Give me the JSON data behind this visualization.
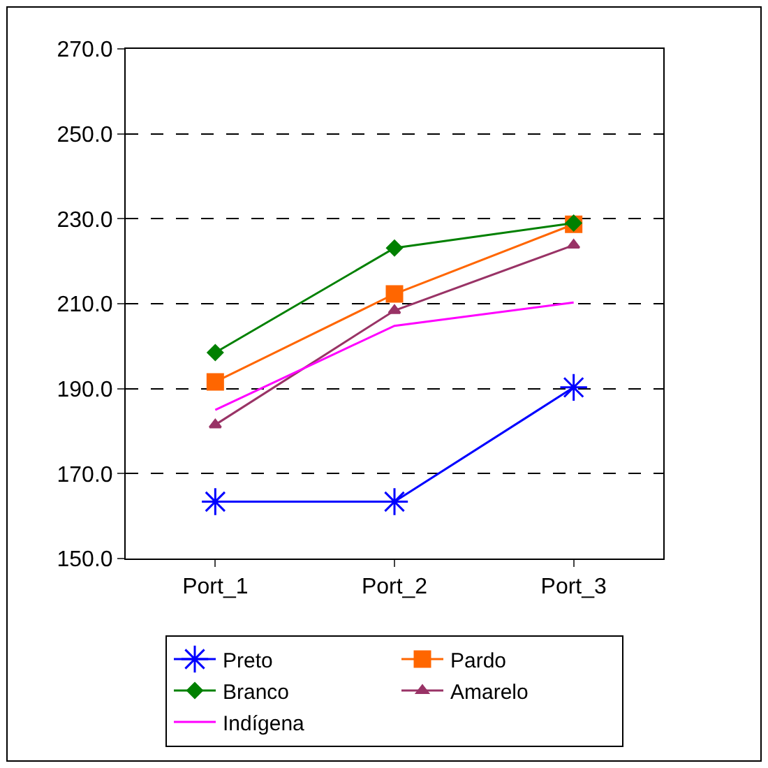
{
  "chart_data": {
    "type": "line",
    "categories": [
      "Port_1",
      "Port_2",
      "Port_3"
    ],
    "series": [
      {
        "name": "Preto",
        "color": "#0000ff",
        "marker": "cross",
        "values": [
          163.4,
          163.4,
          190.3
        ]
      },
      {
        "name": "Pardo",
        "color": "#ff6600",
        "marker": "square",
        "values": [
          191.6,
          212.3,
          228.7
        ]
      },
      {
        "name": "Branco",
        "color": "#008000",
        "marker": "diamond",
        "values": [
          198.5,
          223.1,
          229.0
        ]
      },
      {
        "name": "Amarelo",
        "color": "#993366",
        "marker": "triangle",
        "values": [
          181.5,
          208.4,
          223.8
        ]
      },
      {
        "name": "Indígena",
        "color": "#ff00ff",
        "marker": "none",
        "values": [
          185.0,
          204.8,
          210.3
        ]
      }
    ],
    "ylim": [
      150,
      270
    ],
    "yticks": [
      {
        "value": 150,
        "label": "150.0"
      },
      {
        "value": 170,
        "label": "170.0"
      },
      {
        "value": 190,
        "label": "190.0"
      },
      {
        "value": 210,
        "label": "210.0"
      },
      {
        "value": 230,
        "label": "230.0"
      },
      {
        "value": 250,
        "label": "250.0"
      },
      {
        "value": 270,
        "label": "270.0"
      }
    ],
    "grid": "y",
    "legend": "bottom",
    "line_style": "solid"
  }
}
